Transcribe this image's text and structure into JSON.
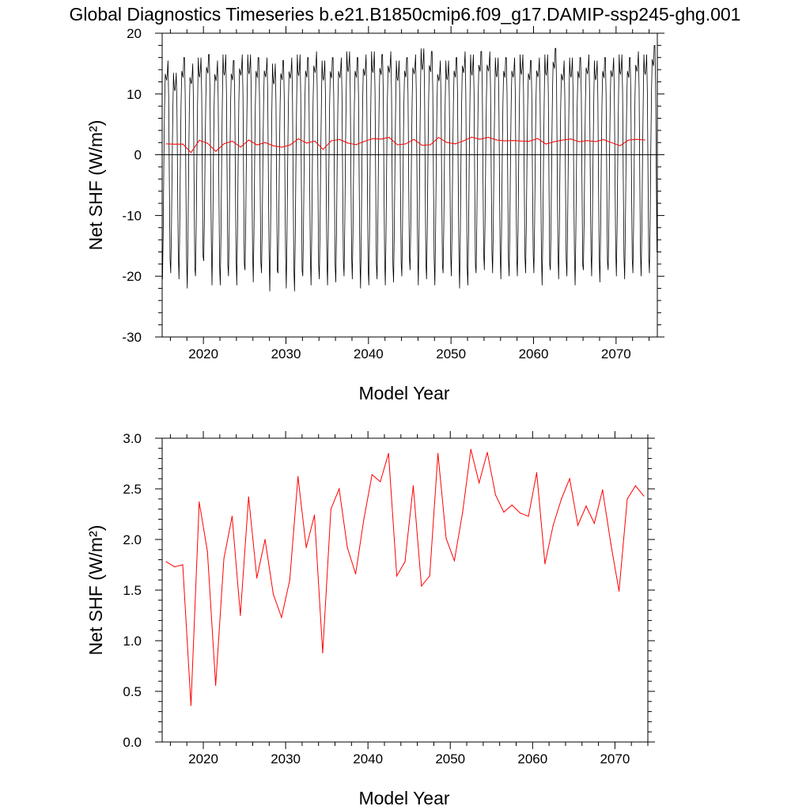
{
  "figure": {
    "title": "Global Diagnostics Timeseries b.e21.B1850cmip6.f09_g17.DAMIP-ssp245-ghg.001"
  },
  "colors": {
    "monthly": "#000000",
    "annual": "#ff0000"
  },
  "chart_data": [
    {
      "type": "line",
      "xlabel": "Model Year",
      "ylabel": "Net SHF (W/m²)",
      "xlim": [
        2015,
        2075
      ],
      "ylim": [
        -30,
        20
      ],
      "x_ticks": [
        2020,
        2030,
        2040,
        2050,
        2060,
        2070
      ],
      "y_ticks": [
        -30,
        -20,
        -10,
        0,
        10,
        20
      ],
      "zero_line": true,
      "series": [
        {
          "role": "monthly",
          "color": "#000000",
          "x_start": 2015.04,
          "x_step": 0.0833333,
          "cycle_template": [
            -18.5,
            -11.5,
            -1,
            7.5,
            12.5,
            12,
            11.5,
            12.5,
            14.5,
            9,
            -4,
            -15.5
          ],
          "annual_min": [
            -20.5,
            -19.5,
            -20.5,
            -22,
            -20,
            -17.5,
            -21.5,
            -21.5,
            -20,
            -21.5,
            -19,
            -21,
            -19.5,
            -22.5,
            -19.5,
            -22,
            -22.5,
            -20,
            -21.5,
            -20.5,
            -21.5,
            -21,
            -20,
            -20.5,
            -22,
            -21.5,
            -20.5,
            -21.5,
            -21,
            -20,
            -19,
            -21.5,
            -20.5,
            -21.5,
            -19.5,
            -20,
            -22,
            -21.5,
            -19.5,
            -19,
            -19.5,
            -20.5,
            -20,
            -20,
            -19.5,
            -19.5,
            -21.5,
            -19,
            -20.5,
            -20,
            -21.5,
            -19,
            -20,
            -21,
            -19,
            -20,
            -20.5,
            -19.5,
            -20,
            -19.5
          ],
          "annual_max": [
            15.5,
            13.5,
            16,
            15,
            16,
            16.5,
            15.5,
            16.5,
            15.5,
            16.5,
            16.5,
            16,
            16,
            15,
            15.5,
            16,
            16.5,
            16,
            17,
            15.5,
            16,
            16,
            17,
            16,
            16.5,
            17,
            16.5,
            17,
            15.5,
            16,
            16.5,
            17.5,
            17,
            15.5,
            15.5,
            16,
            17,
            16.5,
            17,
            17,
            16,
            16,
            16,
            16.5,
            15.5,
            16,
            16.5,
            17.5,
            15.5,
            16,
            16,
            16.5,
            15.5,
            16,
            16,
            16.5,
            16,
            17,
            16.5,
            18
          ]
        },
        {
          "role": "annual-mean",
          "color": "#ff0000",
          "x": [
            2015.5,
            2016.5,
            2017.5,
            2018.5,
            2019.5,
            2020.5,
            2021.5,
            2022.5,
            2023.5,
            2024.5,
            2025.5,
            2026.5,
            2027.5,
            2028.5,
            2029.5,
            2030.5,
            2031.5,
            2032.5,
            2033.5,
            2034.5,
            2035.5,
            2036.5,
            2037.5,
            2038.5,
            2039.5,
            2040.5,
            2041.5,
            2042.5,
            2043.5,
            2044.5,
            2045.5,
            2046.5,
            2047.5,
            2048.5,
            2049.5,
            2050.5,
            2051.5,
            2052.5,
            2053.5,
            2054.5,
            2055.5,
            2056.5,
            2057.5,
            2058.5,
            2059.5,
            2060.5,
            2061.5,
            2062.5,
            2063.5,
            2064.5,
            2065.5,
            2066.5,
            2067.5,
            2068.5,
            2069.5,
            2070.5,
            2071.5,
            2072.5,
            2073.5
          ],
          "values": [
            1.78,
            1.73,
            1.75,
            0.36,
            2.37,
            1.88,
            0.56,
            1.81,
            2.23,
            1.25,
            2.42,
            1.62,
            2.0,
            1.46,
            1.23,
            1.6,
            2.62,
            1.92,
            2.24,
            0.88,
            2.3,
            2.5,
            1.92,
            1.66,
            2.2,
            2.64,
            2.57,
            2.85,
            1.64,
            1.78,
            2.53,
            1.54,
            1.64,
            2.85,
            2.01,
            1.79,
            2.27,
            2.89,
            2.56,
            2.86,
            2.44,
            2.27,
            2.34,
            2.26,
            2.23,
            2.66,
            1.76,
            2.14,
            2.4,
            2.6,
            2.14,
            2.33,
            2.16,
            2.49,
            1.96,
            1.49,
            2.4,
            2.53,
            2.43
          ]
        }
      ]
    },
    {
      "type": "line",
      "xlabel": "Model Year",
      "ylabel": "Net SHF (W/m²)",
      "xlim": [
        2015,
        2074
      ],
      "ylim": [
        0,
        3
      ],
      "x_ticks": [
        2020,
        2030,
        2040,
        2050,
        2060,
        2070
      ],
      "y_ticks": [
        0.0,
        0.5,
        1.0,
        1.5,
        2.0,
        2.5,
        3.0
      ],
      "y_tick_labels": [
        "0.0",
        "0.5",
        "1.0",
        "1.5",
        "2.0",
        "2.5",
        "3.0"
      ],
      "series": [
        {
          "role": "annual-mean",
          "color": "#ff0000",
          "x": [
            2015.5,
            2016.5,
            2017.5,
            2018.5,
            2019.5,
            2020.5,
            2021.5,
            2022.5,
            2023.5,
            2024.5,
            2025.5,
            2026.5,
            2027.5,
            2028.5,
            2029.5,
            2030.5,
            2031.5,
            2032.5,
            2033.5,
            2034.5,
            2035.5,
            2036.5,
            2037.5,
            2038.5,
            2039.5,
            2040.5,
            2041.5,
            2042.5,
            2043.5,
            2044.5,
            2045.5,
            2046.5,
            2047.5,
            2048.5,
            2049.5,
            2050.5,
            2051.5,
            2052.5,
            2053.5,
            2054.5,
            2055.5,
            2056.5,
            2057.5,
            2058.5,
            2059.5,
            2060.5,
            2061.5,
            2062.5,
            2063.5,
            2064.5,
            2065.5,
            2066.5,
            2067.5,
            2068.5,
            2069.5,
            2070.5,
            2071.5,
            2072.5,
            2073.5
          ],
          "values": [
            1.78,
            1.73,
            1.75,
            0.36,
            2.37,
            1.88,
            0.56,
            1.81,
            2.23,
            1.25,
            2.42,
            1.62,
            2.0,
            1.46,
            1.23,
            1.6,
            2.62,
            1.92,
            2.24,
            0.88,
            2.3,
            2.5,
            1.92,
            1.66,
            2.2,
            2.64,
            2.57,
            2.85,
            1.64,
            1.78,
            2.53,
            1.54,
            1.64,
            2.85,
            2.01,
            1.79,
            2.27,
            2.89,
            2.56,
            2.86,
            2.44,
            2.27,
            2.34,
            2.26,
            2.23,
            2.66,
            1.76,
            2.14,
            2.4,
            2.6,
            2.14,
            2.33,
            2.16,
            2.49,
            1.96,
            1.49,
            2.4,
            2.53,
            2.43
          ]
        }
      ]
    }
  ]
}
